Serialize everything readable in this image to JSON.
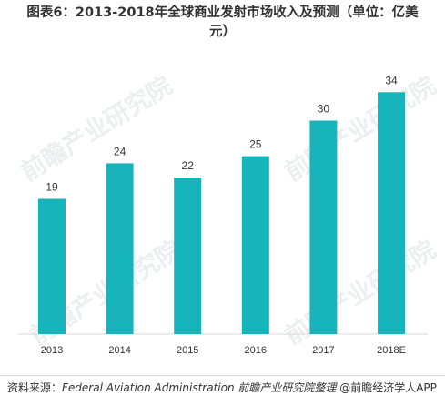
{
  "chart_data": {
    "type": "bar",
    "title": "图表6：2013-2018年全球商业发射市场收入及预测（单位：亿美元）",
    "title_lines": [
      "图表6：2013-2018年全球商业发射市场收入及预测（单位：亿美",
      "元）"
    ],
    "categories": [
      "2013",
      "2014",
      "2015",
      "2016",
      "2017",
      "2018E"
    ],
    "values": [
      19,
      24,
      22,
      25,
      30,
      34
    ],
    "data_labels": [
      "19",
      "24",
      "22",
      "25",
      "30",
      "34"
    ],
    "xlabel": "",
    "ylabel": "",
    "ylim": [
      0,
      38
    ],
    "grid": false,
    "legend": "none",
    "bar_color": "#17b4bb"
  },
  "watermark": {
    "text": "前瞻产业研究院"
  },
  "footer": {
    "source_prefix": "资料来源：",
    "source_text": "Federal Aviation Administration 前瞻产业研究院整理",
    "brand": "@前瞻经济学人APP"
  }
}
